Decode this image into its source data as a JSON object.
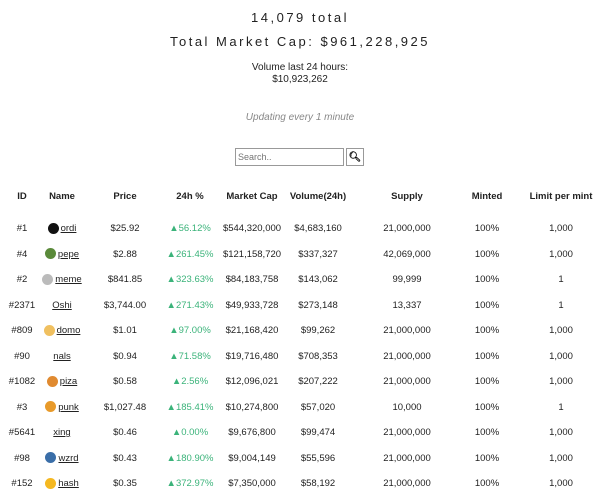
{
  "summary": {
    "total": "14,079 total",
    "market_cap": "Total Market Cap: $961,228,925",
    "volume_label": "Volume last 24 hours:",
    "volume_value": "$10,923,262",
    "updating": "Updating every 1 minute"
  },
  "search": {
    "placeholder": "Search..",
    "button_icon": "search-icon"
  },
  "columns": [
    "ID",
    "Name",
    "Price",
    "24h %",
    "Market Cap",
    "Volume(24h)",
    "Supply",
    "Minted",
    "Limit per mint"
  ],
  "rows": [
    {
      "id": "#1",
      "name": "ordi",
      "icon_color": "#111111",
      "price": "$25.92",
      "change": "▲56.12%",
      "mcap": "$544,320,000",
      "volume": "$4,683,160",
      "supply": "21,000,000",
      "minted": "100%",
      "limit": "1,000"
    },
    {
      "id": "#4",
      "name": "pepe",
      "icon_color": "#5a8a3a",
      "price": "$2.88",
      "change": "▲261.45%",
      "mcap": "$121,158,720",
      "volume": "$337,327",
      "supply": "42,069,000",
      "minted": "100%",
      "limit": "1,000"
    },
    {
      "id": "#2",
      "name": "meme",
      "icon_color": "#bbbbbb",
      "price": "$841.85",
      "change": "▲323.63%",
      "mcap": "$84,183,758",
      "volume": "$143,062",
      "supply": "99,999",
      "minted": "100%",
      "limit": "1"
    },
    {
      "id": "#2371",
      "name": "Oshi",
      "icon_color": "",
      "price": "$3,744.00",
      "change": "▲271.43%",
      "mcap": "$49,933,728",
      "volume": "$273,148",
      "supply": "13,337",
      "minted": "100%",
      "limit": "1"
    },
    {
      "id": "#809",
      "name": "domo",
      "icon_color": "#f0c060",
      "price": "$1.01",
      "change": "▲97.00%",
      "mcap": "$21,168,420",
      "volume": "$99,262",
      "supply": "21,000,000",
      "minted": "100%",
      "limit": "1,000"
    },
    {
      "id": "#90",
      "name": "nals",
      "icon_color": "",
      "price": "$0.94",
      "change": "▲71.58%",
      "mcap": "$19,716,480",
      "volume": "$708,353",
      "supply": "21,000,000",
      "minted": "100%",
      "limit": "1,000"
    },
    {
      "id": "#1082",
      "name": "piza",
      "icon_color": "#e08a30",
      "price": "$0.58",
      "change": "▲2.56%",
      "mcap": "$12,096,021",
      "volume": "$207,222",
      "supply": "21,000,000",
      "minted": "100%",
      "limit": "1,000"
    },
    {
      "id": "#3",
      "name": "punk",
      "icon_color": "#e89a2a",
      "price": "$1,027.48",
      "change": "▲185.41%",
      "mcap": "$10,274,800",
      "volume": "$57,020",
      "supply": "10,000",
      "minted": "100%",
      "limit": "1"
    },
    {
      "id": "#5641",
      "name": "xing",
      "icon_color": "",
      "price": "$0.46",
      "change": "▲0.00%",
      "mcap": "$9,676,800",
      "volume": "$99,474",
      "supply": "21,000,000",
      "minted": "100%",
      "limit": "1,000"
    },
    {
      "id": "#98",
      "name": "wzrd",
      "icon_color": "#3a6ea8",
      "price": "$0.43",
      "change": "▲180.90%",
      "mcap": "$9,004,149",
      "volume": "$55,596",
      "supply": "21,000,000",
      "minted": "100%",
      "limit": "1,000"
    },
    {
      "id": "#152",
      "name": "hash",
      "icon_color": "#f5b820",
      "price": "$0.35",
      "change": "▲372.97%",
      "mcap": "$7,350,000",
      "volume": "$58,192",
      "supply": "21,000,000",
      "minted": "100%",
      "limit": "1,000"
    }
  ],
  "colors": {
    "positive": "#3bb37a"
  }
}
